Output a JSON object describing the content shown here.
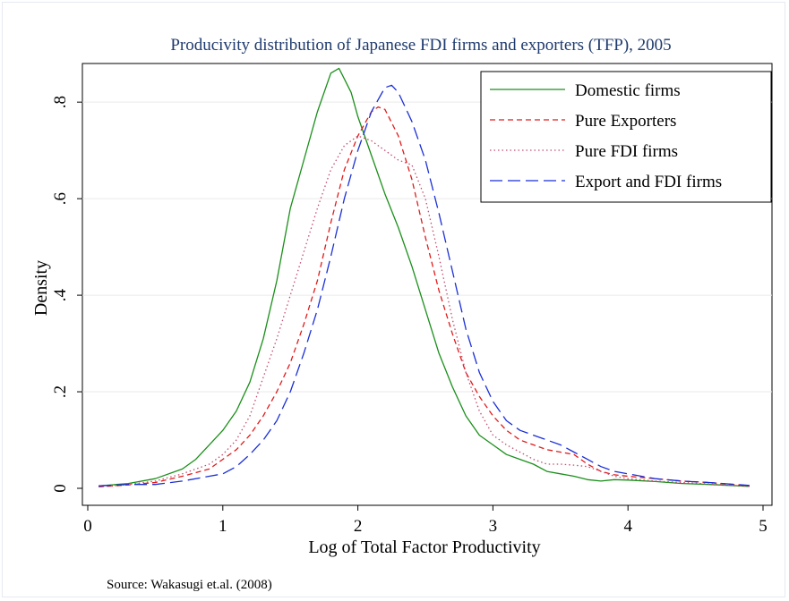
{
  "chart_data": {
    "type": "line",
    "title": "Producivity distribution of Japanese FDI firms and exporters (TFP),  2005",
    "xlabel": "Log of Total Factor Productivity",
    "ylabel": "Density",
    "xlim": [
      0,
      5
    ],
    "ylim": [
      0,
      0.88
    ],
    "x_ticks": [
      0,
      1,
      2,
      3,
      4,
      5
    ],
    "x_tick_labels": [
      "0",
      "1",
      "2",
      "3",
      "4",
      "5"
    ],
    "y_ticks": [
      0,
      0.2,
      0.4,
      0.6,
      0.8
    ],
    "y_tick_labels": [
      "0",
      ".2",
      ".4",
      ".6",
      ".8"
    ],
    "grid": "horizontal",
    "legend_position": "top-right",
    "note": "Source: Wakasugi et.al. (2008)",
    "series": [
      {
        "name": "Domestic firms",
        "color": "#1a8f1a",
        "dash": "solid",
        "points": [
          [
            0.08,
            0.005
          ],
          [
            0.3,
            0.01
          ],
          [
            0.5,
            0.02
          ],
          [
            0.7,
            0.04
          ],
          [
            0.8,
            0.06
          ],
          [
            0.9,
            0.09
          ],
          [
            1.0,
            0.12
          ],
          [
            1.1,
            0.16
          ],
          [
            1.2,
            0.22
          ],
          [
            1.3,
            0.31
          ],
          [
            1.4,
            0.43
          ],
          [
            1.5,
            0.58
          ],
          [
            1.6,
            0.68
          ],
          [
            1.7,
            0.78
          ],
          [
            1.8,
            0.86
          ],
          [
            1.86,
            0.87
          ],
          [
            1.95,
            0.82
          ],
          [
            2.0,
            0.77
          ],
          [
            2.1,
            0.69
          ],
          [
            2.2,
            0.61
          ],
          [
            2.3,
            0.54
          ],
          [
            2.4,
            0.46
          ],
          [
            2.5,
            0.37
          ],
          [
            2.6,
            0.28
          ],
          [
            2.7,
            0.21
          ],
          [
            2.8,
            0.15
          ],
          [
            2.9,
            0.11
          ],
          [
            3.0,
            0.09
          ],
          [
            3.1,
            0.07
          ],
          [
            3.2,
            0.06
          ],
          [
            3.3,
            0.05
          ],
          [
            3.4,
            0.035
          ],
          [
            3.5,
            0.03
          ],
          [
            3.6,
            0.025
          ],
          [
            3.7,
            0.018
          ],
          [
            3.8,
            0.015
          ],
          [
            3.9,
            0.018
          ],
          [
            4.0,
            0.017
          ],
          [
            4.2,
            0.014
          ],
          [
            4.4,
            0.01
          ],
          [
            4.6,
            0.008
          ],
          [
            4.9,
            0.004
          ]
        ]
      },
      {
        "name": "Pure Exporters",
        "color": "#e01b1b",
        "dash": "6,4",
        "points": [
          [
            0.08,
            0.003
          ],
          [
            0.3,
            0.007
          ],
          [
            0.5,
            0.012
          ],
          [
            0.7,
            0.025
          ],
          [
            0.9,
            0.04
          ],
          [
            1.0,
            0.06
          ],
          [
            1.1,
            0.08
          ],
          [
            1.2,
            0.11
          ],
          [
            1.3,
            0.15
          ],
          [
            1.4,
            0.2
          ],
          [
            1.5,
            0.26
          ],
          [
            1.6,
            0.34
          ],
          [
            1.7,
            0.43
          ],
          [
            1.8,
            0.55
          ],
          [
            1.9,
            0.66
          ],
          [
            2.0,
            0.73
          ],
          [
            2.1,
            0.78
          ],
          [
            2.15,
            0.79
          ],
          [
            2.2,
            0.785
          ],
          [
            2.3,
            0.73
          ],
          [
            2.4,
            0.64
          ],
          [
            2.5,
            0.52
          ],
          [
            2.6,
            0.41
          ],
          [
            2.7,
            0.32
          ],
          [
            2.8,
            0.24
          ],
          [
            2.9,
            0.19
          ],
          [
            3.0,
            0.15
          ],
          [
            3.1,
            0.12
          ],
          [
            3.2,
            0.1
          ],
          [
            3.3,
            0.09
          ],
          [
            3.4,
            0.08
          ],
          [
            3.5,
            0.075
          ],
          [
            3.6,
            0.07
          ],
          [
            3.7,
            0.05
          ],
          [
            3.8,
            0.035
          ],
          [
            3.9,
            0.028
          ],
          [
            4.0,
            0.025
          ],
          [
            4.2,
            0.02
          ],
          [
            4.4,
            0.015
          ],
          [
            4.6,
            0.012
          ],
          [
            4.9,
            0.005
          ]
        ]
      },
      {
        "name": "Pure FDI firms",
        "color": "#c44d6e",
        "dash": "1.5,3",
        "points": [
          [
            0.08,
            0.003
          ],
          [
            0.3,
            0.008
          ],
          [
            0.5,
            0.015
          ],
          [
            0.7,
            0.03
          ],
          [
            0.9,
            0.05
          ],
          [
            1.0,
            0.07
          ],
          [
            1.1,
            0.1
          ],
          [
            1.2,
            0.15
          ],
          [
            1.3,
            0.23
          ],
          [
            1.4,
            0.31
          ],
          [
            1.5,
            0.4
          ],
          [
            1.6,
            0.49
          ],
          [
            1.7,
            0.58
          ],
          [
            1.8,
            0.66
          ],
          [
            1.9,
            0.71
          ],
          [
            2.0,
            0.73
          ],
          [
            2.1,
            0.72
          ],
          [
            2.2,
            0.7
          ],
          [
            2.3,
            0.68
          ],
          [
            2.4,
            0.67
          ],
          [
            2.5,
            0.6
          ],
          [
            2.6,
            0.48
          ],
          [
            2.7,
            0.35
          ],
          [
            2.8,
            0.24
          ],
          [
            2.9,
            0.16
          ],
          [
            3.0,
            0.11
          ],
          [
            3.1,
            0.09
          ],
          [
            3.2,
            0.075
          ],
          [
            3.3,
            0.06
          ],
          [
            3.4,
            0.05
          ],
          [
            3.5,
            0.05
          ],
          [
            3.6,
            0.048
          ],
          [
            3.7,
            0.045
          ],
          [
            3.8,
            0.035
          ],
          [
            3.9,
            0.025
          ],
          [
            4.0,
            0.02
          ],
          [
            4.2,
            0.015
          ],
          [
            4.4,
            0.012
          ],
          [
            4.6,
            0.009
          ],
          [
            4.9,
            0.004
          ]
        ]
      },
      {
        "name": "Export and FDI firms",
        "color": "#1a2fd6",
        "dash": "14,6",
        "points": [
          [
            0.08,
            0.005
          ],
          [
            0.3,
            0.008
          ],
          [
            0.5,
            0.008
          ],
          [
            0.7,
            0.015
          ],
          [
            0.9,
            0.025
          ],
          [
            1.0,
            0.03
          ],
          [
            1.1,
            0.045
          ],
          [
            1.2,
            0.07
          ],
          [
            1.3,
            0.1
          ],
          [
            1.4,
            0.14
          ],
          [
            1.5,
            0.2
          ],
          [
            1.6,
            0.28
          ],
          [
            1.7,
            0.37
          ],
          [
            1.8,
            0.48
          ],
          [
            1.9,
            0.6
          ],
          [
            2.0,
            0.7
          ],
          [
            2.1,
            0.78
          ],
          [
            2.2,
            0.83
          ],
          [
            2.25,
            0.835
          ],
          [
            2.3,
            0.82
          ],
          [
            2.4,
            0.76
          ],
          [
            2.5,
            0.68
          ],
          [
            2.6,
            0.57
          ],
          [
            2.7,
            0.45
          ],
          [
            2.8,
            0.33
          ],
          [
            2.9,
            0.24
          ],
          [
            3.0,
            0.18
          ],
          [
            3.1,
            0.14
          ],
          [
            3.2,
            0.12
          ],
          [
            3.3,
            0.11
          ],
          [
            3.4,
            0.1
          ],
          [
            3.5,
            0.09
          ],
          [
            3.6,
            0.075
          ],
          [
            3.7,
            0.06
          ],
          [
            3.8,
            0.045
          ],
          [
            3.9,
            0.035
          ],
          [
            4.0,
            0.03
          ],
          [
            4.2,
            0.02
          ],
          [
            4.4,
            0.015
          ],
          [
            4.6,
            0.012
          ],
          [
            4.9,
            0.006
          ]
        ]
      }
    ]
  }
}
